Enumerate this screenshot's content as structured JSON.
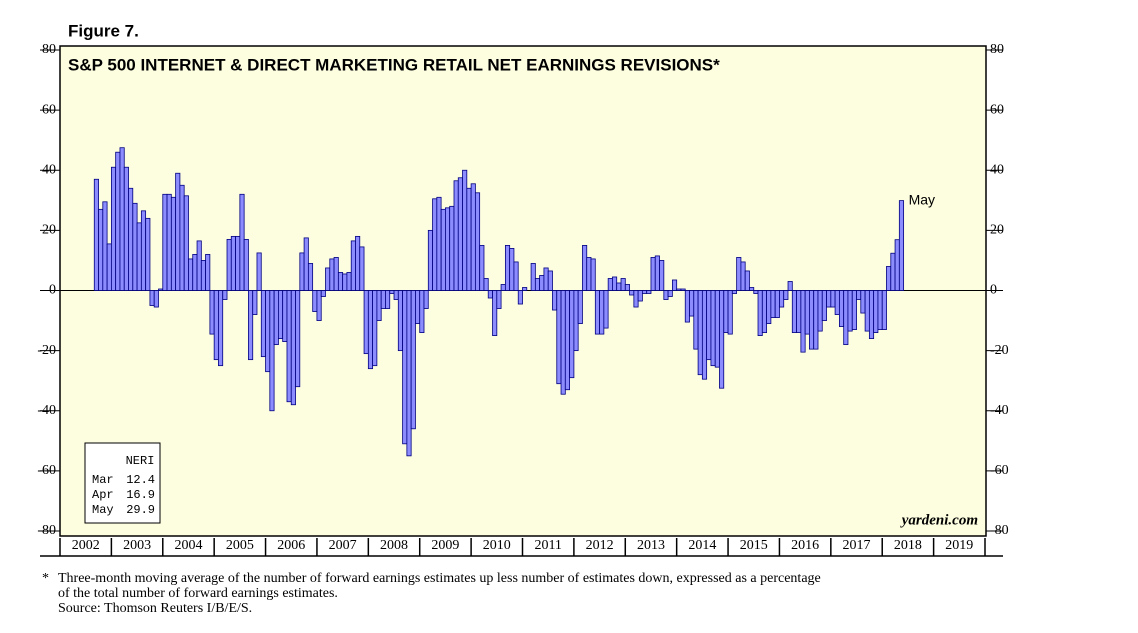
{
  "chart_data": {
    "type": "bar",
    "figure_label": "Figure 7.",
    "title": "S&P 500 INTERNET & DIRECT MARKETING RETAIL NET EARNINGS REVISIONS*",
    "source_mark": "yardeni.com",
    "annotation": "May",
    "x": [
      2002.667,
      2002.75,
      2002.833,
      2002.917,
      2003,
      2003.083,
      2003.167,
      2003.25,
      2003.333,
      2003.417,
      2003.5,
      2003.583,
      2003.667,
      2003.75,
      2003.833,
      2003.917,
      2004,
      2004.083,
      2004.167,
      2004.25,
      2004.333,
      2004.417,
      2004.5,
      2004.583,
      2004.667,
      2004.75,
      2004.833,
      2004.917,
      2005,
      2005.083,
      2005.167,
      2005.25,
      2005.333,
      2005.417,
      2005.5,
      2005.583,
      2005.667,
      2005.75,
      2005.833,
      2005.917,
      2006,
      2006.083,
      2006.167,
      2006.25,
      2006.333,
      2006.417,
      2006.5,
      2006.583,
      2006.667,
      2006.75,
      2006.833,
      2006.917,
      2007,
      2007.083,
      2007.167,
      2007.25,
      2007.333,
      2007.417,
      2007.5,
      2007.583,
      2007.667,
      2007.75,
      2007.833,
      2007.917,
      2008,
      2008.083,
      2008.167,
      2008.25,
      2008.333,
      2008.417,
      2008.5,
      2008.583,
      2008.667,
      2008.75,
      2008.833,
      2008.917,
      2009,
      2009.083,
      2009.167,
      2009.25,
      2009.333,
      2009.417,
      2009.5,
      2009.583,
      2009.667,
      2009.75,
      2009.833,
      2009.917,
      2010,
      2010.083,
      2010.167,
      2010.25,
      2010.333,
      2010.417,
      2010.5,
      2010.583,
      2010.667,
      2010.75,
      2010.833,
      2010.917,
      2011,
      2011.083,
      2011.167,
      2011.25,
      2011.333,
      2011.417,
      2011.5,
      2011.583,
      2011.667,
      2011.75,
      2011.833,
      2011.917,
      2012,
      2012.083,
      2012.167,
      2012.25,
      2012.333,
      2012.417,
      2012.5,
      2012.583,
      2012.667,
      2012.75,
      2012.833,
      2012.917,
      2013,
      2013.083,
      2013.167,
      2013.25,
      2013.333,
      2013.417,
      2013.5,
      2013.583,
      2013.667,
      2013.75,
      2013.833,
      2013.917,
      2014,
      2014.083,
      2014.167,
      2014.25,
      2014.333,
      2014.417,
      2014.5,
      2014.583,
      2014.667,
      2014.75,
      2014.833,
      2014.917,
      2015,
      2015.083,
      2015.167,
      2015.25,
      2015.333,
      2015.417,
      2015.5,
      2015.583,
      2015.667,
      2015.75,
      2015.833,
      2015.917,
      2016,
      2016.083,
      2016.167,
      2016.25,
      2016.333,
      2016.417,
      2016.5,
      2016.583,
      2016.667,
      2016.75,
      2016.833,
      2016.917,
      2017,
      2017.083,
      2017.167,
      2017.25,
      2017.333,
      2017.417,
      2017.5,
      2017.583,
      2017.667,
      2017.75,
      2017.833,
      2017.917,
      2018,
      2018.083,
      2018.167,
      2018.25,
      2018.333
    ],
    "values": [
      37,
      27,
      29.5,
      15.5,
      41,
      46,
      47.5,
      41,
      34,
      29,
      22.5,
      26.5,
      24,
      -5,
      -5.5,
      0.5,
      32,
      32,
      31,
      39,
      35,
      31.5,
      10.5,
      12,
      16.5,
      10,
      12,
      -14.5,
      -23,
      -25,
      -3,
      17,
      18,
      18,
      32,
      17,
      -23,
      -8,
      12.5,
      -22,
      -27,
      -40,
      -18,
      -16,
      -17,
      -37,
      -38,
      -32,
      12.5,
      17.5,
      9,
      -7,
      -10,
      -2,
      7.5,
      10.5,
      11,
      6,
      5.5,
      6,
      16.5,
      18,
      14.5,
      -21,
      -26,
      -25,
      -10,
      -6,
      -6,
      -1,
      -3,
      -20,
      -51,
      -55,
      -46,
      -11,
      -14,
      -6,
      20,
      30.5,
      31,
      27,
      27.5,
      28,
      36.5,
      37.5,
      40,
      34,
      35.5,
      32.5,
      15,
      4,
      -2.5,
      -15,
      -6,
      2,
      15,
      14,
      9.5,
      -4.5,
      1,
      0,
      9,
      4,
      5,
      7.5,
      6.5,
      -6.5,
      -31,
      -34.5,
      -33,
      -29,
      -20,
      -11,
      15,
      11,
      10.5,
      -14.5,
      -14.5,
      -12.5,
      4,
      4.5,
      2.5,
      4,
      2,
      -1.5,
      -5.5,
      -3.5,
      -1,
      -1,
      11,
      11.5,
      10,
      -3,
      -2,
      3.5,
      0.5,
      0.5,
      -10.5,
      -8.5,
      -19.5,
      -28,
      -29.5,
      -23,
      -25,
      -25.5,
      -32.5,
      -14,
      -14.5,
      -1,
      11,
      9.5,
      6.5,
      1,
      -1,
      -15,
      -14,
      -11,
      -9,
      -9,
      -5.5,
      -3,
      3,
      -14,
      -14,
      -20.5,
      -14.5,
      -19.5,
      -19.5,
      -13.5,
      -10,
      -5.5,
      -5.5,
      -8,
      -12,
      -18,
      -13.5,
      -13,
      -3,
      -7.5,
      -13.5,
      -16,
      -14,
      -13,
      -13,
      8,
      12.4,
      16.9,
      29.9
    ],
    "color": "#8c8cff",
    "edge_color": "#000080",
    "plot_background": "#fdfde0",
    "xlim": [
      2002,
      2020
    ],
    "xticks": [
      {
        "value": 2002.5,
        "label": "2002"
      },
      {
        "value": 2003.5,
        "label": "2003"
      },
      {
        "value": 2004.5,
        "label": "2004"
      },
      {
        "value": 2005.5,
        "label": "2005"
      },
      {
        "value": 2006.5,
        "label": "2006"
      },
      {
        "value": 2007.5,
        "label": "2007"
      },
      {
        "value": 2008.5,
        "label": "2008"
      },
      {
        "value": 2009.5,
        "label": "2009"
      },
      {
        "value": 2010.5,
        "label": "2010"
      },
      {
        "value": 2011.5,
        "label": "2011"
      },
      {
        "value": 2012.5,
        "label": "2012"
      },
      {
        "value": 2013.5,
        "label": "2013"
      },
      {
        "value": 2014.5,
        "label": "2014"
      },
      {
        "value": 2015.5,
        "label": "2015"
      },
      {
        "value": 2016.5,
        "label": "2016"
      },
      {
        "value": 2017.5,
        "label": "2017"
      },
      {
        "value": 2018.5,
        "label": "2018"
      },
      {
        "value": 2019.5,
        "label": "2019"
      }
    ],
    "ylim": [
      -80,
      80
    ],
    "yticks": [
      -80,
      -60,
      -40,
      -20,
      0,
      20,
      40,
      60,
      80
    ],
    "table": {
      "title": "NERI",
      "rows": [
        {
          "label": "Mar",
          "value": 12.4
        },
        {
          "label": "Apr",
          "value": 16.9
        },
        {
          "label": "May",
          "value": 29.9
        }
      ]
    },
    "footnote_marker": "*",
    "footnote": [
      "Three-month moving average of the number of forward earnings estimates up less number of estimates down, expressed as a percentage",
      "of the total number of forward earnings estimates.",
      "Source: Thomson Reuters I/B/E/S."
    ]
  }
}
